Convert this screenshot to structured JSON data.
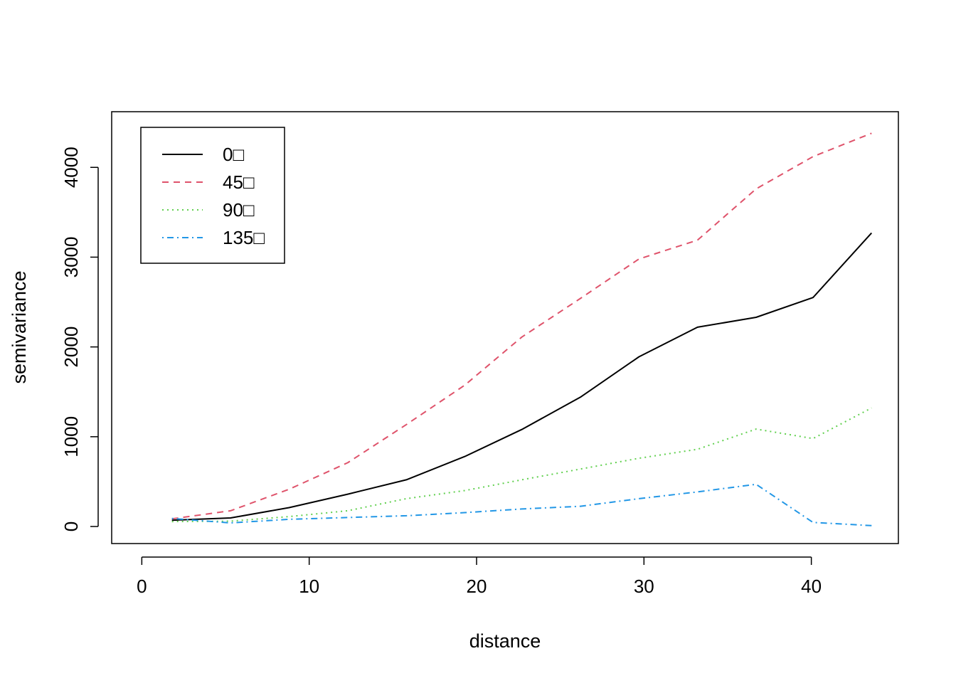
{
  "chart_data": {
    "type": "line",
    "title": "",
    "xlabel": "distance",
    "ylabel": "semivariance",
    "xlim": [
      -1.8,
      45.2
    ],
    "ylim": [
      -190,
      4620
    ],
    "xticks": [
      0,
      10,
      20,
      30,
      40
    ],
    "yticks": [
      0,
      1000,
      2000,
      3000,
      4000
    ],
    "xtick_labels": [
      "0",
      "10",
      "20",
      "30",
      "40"
    ],
    "ytick_labels": [
      "0",
      "1000",
      "2000",
      "3000",
      "4000"
    ],
    "grid": false,
    "legend_position": "top-left",
    "x": [
      1.8,
      5.3,
      8.8,
      12.3,
      15.8,
      19.3,
      22.7,
      26.2,
      29.7,
      33.2,
      36.7,
      40.1,
      43.6
    ],
    "series": [
      {
        "name": "0□",
        "color": "#000000",
        "dash": "solid",
        "values": [
          70,
          95,
          210,
          360,
          520,
          780,
          1080,
          1440,
          1890,
          2220,
          2330,
          2550,
          3270
        ]
      },
      {
        "name": "45□",
        "color": "#DF536B",
        "dash": "dashed",
        "values": [
          85,
          175,
          415,
          710,
          1135,
          1575,
          2110,
          2540,
          2980,
          3190,
          3760,
          4120,
          4380
        ]
      },
      {
        "name": "90□",
        "color": "#61D04F",
        "dash": "dotted",
        "values": [
          55,
          60,
          110,
          175,
          310,
          400,
          520,
          640,
          760,
          860,
          1085,
          980,
          1320
        ]
      },
      {
        "name": "135□",
        "color": "#2297E6",
        "dash": "dotdash",
        "values": [
          90,
          40,
          80,
          100,
          120,
          155,
          195,
          225,
          310,
          385,
          470,
          45,
          10
        ]
      }
    ]
  }
}
